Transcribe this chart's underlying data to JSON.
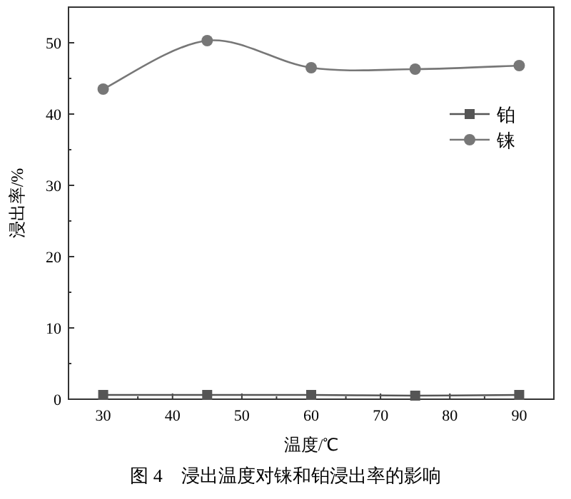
{
  "chart_data": {
    "type": "line",
    "xlabel": "温度/℃",
    "ylabel": "浸出率/%",
    "annotations": [
      "图 4　浸出温度对铼和铂浸出率的影响"
    ],
    "x": [
      30,
      45,
      60,
      75,
      90
    ],
    "series": [
      {
        "name": "铂",
        "color": "#555555",
        "marker": "square",
        "values": [
          0.6,
          0.6,
          0.6,
          0.5,
          0.6
        ]
      },
      {
        "name": "铼",
        "color": "#777777",
        "marker": "circle",
        "values": [
          43.5,
          50.3,
          46.5,
          46.3,
          46.8
        ]
      }
    ],
    "xlim": [
      25,
      95
    ],
    "xticks": [
      30,
      40,
      50,
      60,
      70,
      80,
      90
    ],
    "ylim": [
      0,
      55
    ],
    "yticks": [
      0,
      10,
      20,
      30,
      40,
      50
    ],
    "grid": false,
    "legend": "top right"
  }
}
